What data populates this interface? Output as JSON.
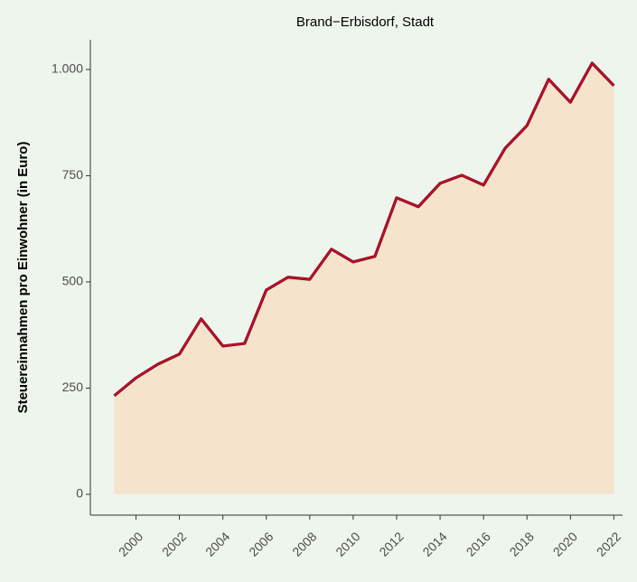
{
  "chart_data": {
    "type": "area",
    "title": "Brand−Erbisdorf, Stadt",
    "y_label": "Steuereinnahmen pro Einwohner (in Euro)",
    "x": [
      1999,
      2000,
      2001,
      2002,
      2003,
      2004,
      2005,
      2006,
      2007,
      2008,
      2009,
      2010,
      2011,
      2012,
      2013,
      2014,
      2015,
      2016,
      2017,
      2018,
      2019,
      2020,
      2021,
      2022
    ],
    "values": [
      232,
      274,
      306,
      330,
      413,
      349,
      355,
      481,
      511,
      506,
      577,
      547,
      560,
      698,
      677,
      732,
      751,
      728,
      815,
      868,
      977,
      923,
      1015,
      962
    ],
    "color": "#c8102e",
    "fill": "#f5e3cc",
    "xlim": [
      1997.9,
      2022.4
    ],
    "xticks": [
      2000,
      2002,
      2004,
      2006,
      2008,
      2010,
      2012,
      2014,
      2016,
      2018,
      2020,
      2022
    ],
    "ylim": [
      -49,
      1070
    ],
    "yticks": [
      0,
      250,
      500,
      750,
      {
        "value": 1000,
        "label": "1.000"
      }
    ]
  }
}
